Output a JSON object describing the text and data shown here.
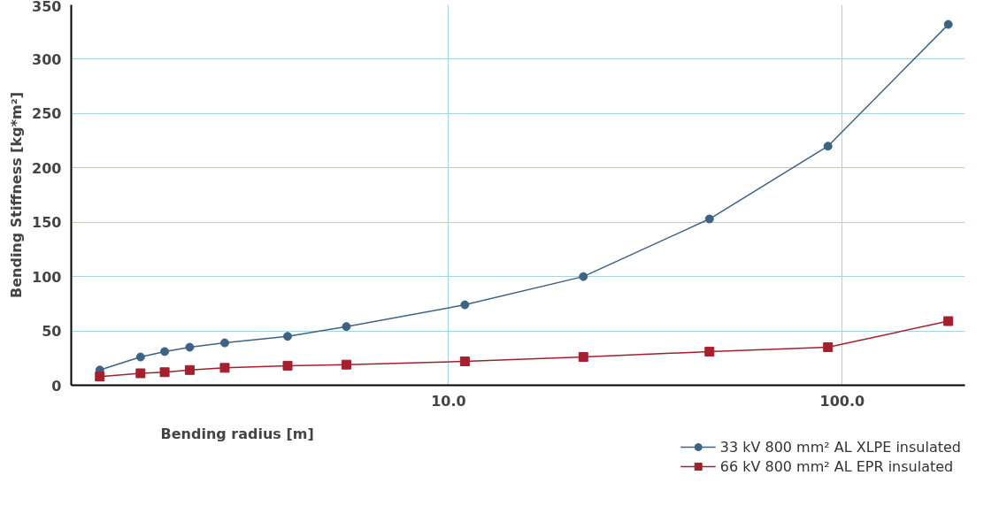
{
  "chart_data": {
    "type": "line",
    "xlabel": "Bending radius [m]",
    "ylabel": "Bending Stiffness [kg*m²]",
    "log": "x",
    "xlim": [
      1.1,
      205
    ],
    "ylim": [
      0,
      350
    ],
    "xticks": [
      {
        "value": 10,
        "label": "10.0"
      },
      {
        "value": 100,
        "label": "100.0"
      }
    ],
    "yticks": [
      0,
      50,
      100,
      150,
      200,
      250,
      300,
      350
    ],
    "grid": true,
    "legend": "bottom right",
    "x": [
      1.3,
      1.65,
      1.9,
      2.2,
      2.7,
      3.9,
      5.5,
      11,
      22,
      46,
      92,
      186
    ],
    "series": [
      {
        "name": "33 kV 800 mm² AL XLPE insulated",
        "color": "#3d6384",
        "marker": "circle",
        "values": [
          14,
          26,
          31,
          35,
          39,
          45,
          54,
          74,
          100,
          153,
          220,
          332
        ]
      },
      {
        "name": "66 kV 800 mm² AL EPR insulated",
        "color": "#a51f2f",
        "marker": "square",
        "values": [
          8,
          11,
          12,
          14,
          16,
          18,
          19,
          22,
          26,
          31,
          35,
          59
        ]
      }
    ]
  }
}
